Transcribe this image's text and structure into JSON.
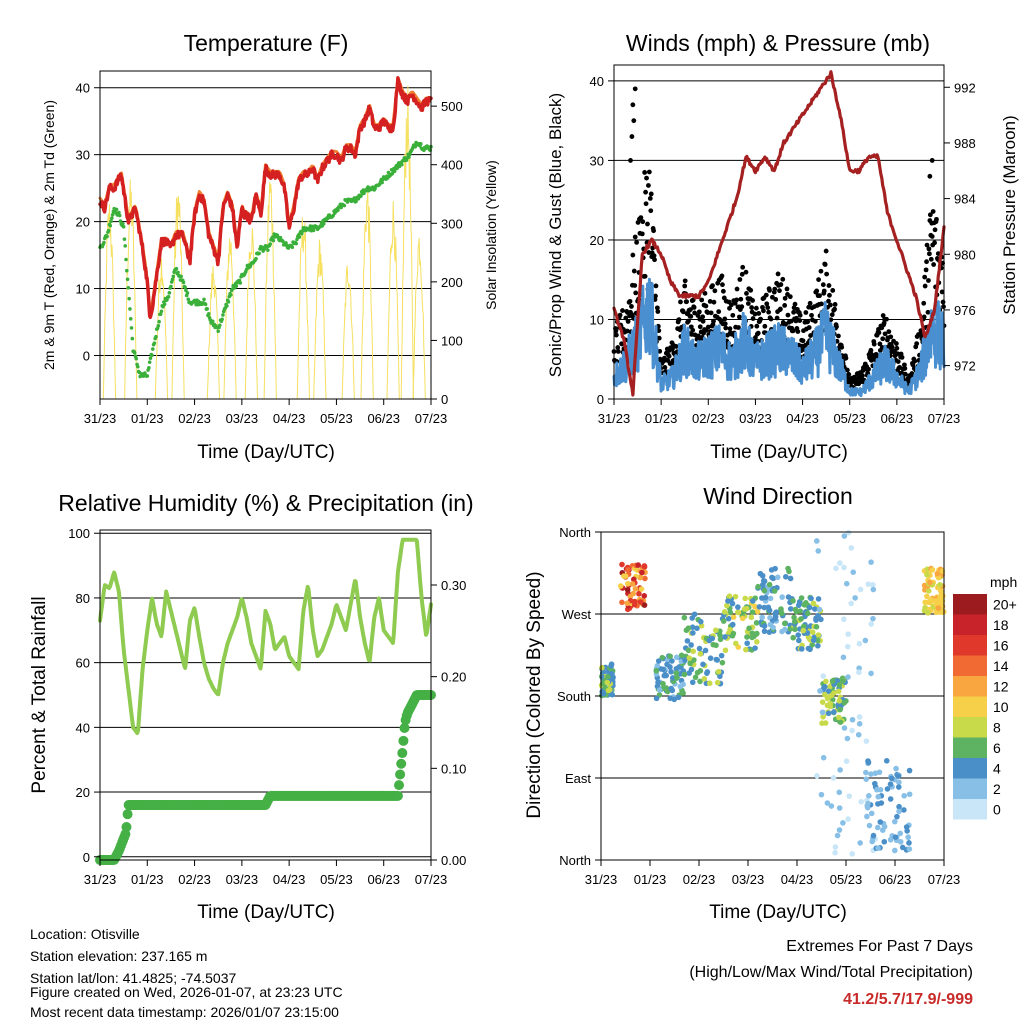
{
  "chart_data": [
    {
      "type": "line",
      "title": "Temperature (F)",
      "xlabel": "Time (Day/UTC)",
      "ylabel": "2m & 9m T (Red, Orange) & 2m Td (Green)",
      "y2label": "Solar Insolation (Yellow)",
      "xticks": [
        "31/23",
        "01/23",
        "02/23",
        "03/23",
        "04/23",
        "05/23",
        "06/23",
        "07/23"
      ],
      "xlim": [
        0,
        7
      ],
      "ylim": [
        -6.5,
        42.5
      ],
      "yticks": [
        0,
        10,
        20,
        30,
        40
      ],
      "y2lim": [
        0,
        560
      ],
      "y2ticks": [
        0,
        100,
        200,
        300,
        400,
        500
      ],
      "series": [
        {
          "name": "2m T",
          "color": "#d42020",
          "x": [
            0,
            0.1,
            0.2,
            0.3,
            0.45,
            0.6,
            0.75,
            0.9,
            1.0,
            1.05,
            1.1,
            1.2,
            1.3,
            1.4,
            1.5,
            1.6,
            1.75,
            1.9,
            2.0,
            2.1,
            2.2,
            2.3,
            2.4,
            2.5,
            2.6,
            2.7,
            2.8,
            2.9,
            3.0,
            3.05,
            3.1,
            3.2,
            3.3,
            3.4,
            3.5,
            3.6,
            3.7,
            3.8,
            3.9,
            4.0,
            4.1,
            4.2,
            4.3,
            4.4,
            4.5,
            4.6,
            4.7,
            4.8,
            4.9,
            5.0,
            5.1,
            5.2,
            5.3,
            5.4,
            5.5,
            5.6,
            5.7,
            5.8,
            5.9,
            6.0,
            6.1,
            6.2,
            6.3,
            6.4,
            6.5,
            6.6,
            6.7,
            6.8,
            6.9,
            7.0
          ],
          "y": [
            23,
            22,
            25,
            25,
            27,
            20,
            22,
            16,
            11,
            6,
            7,
            12,
            17,
            17,
            16,
            18,
            18,
            14,
            21,
            24,
            23,
            18,
            16,
            14,
            22,
            24,
            22,
            16,
            22,
            21,
            21,
            20,
            24,
            21,
            28,
            27,
            27,
            27,
            25,
            19,
            22,
            26,
            27,
            27,
            28,
            26,
            28,
            29,
            30,
            30,
            29,
            31,
            31,
            30,
            34,
            35,
            37,
            34,
            34,
            35,
            34,
            34,
            41,
            39,
            38,
            39,
            38,
            37,
            38,
            38
          ]
        },
        {
          "name": "2m Td",
          "color": "#3ab03a",
          "x": [
            0,
            0.15,
            0.3,
            0.4,
            0.5,
            0.6,
            0.7,
            0.85,
            1.0,
            1.15,
            1.3,
            1.45,
            1.6,
            1.75,
            1.9,
            2.05,
            2.2,
            2.35,
            2.5,
            2.65,
            2.8,
            2.95,
            3.1,
            3.25,
            3.4,
            3.55,
            3.7,
            3.85,
            4.0,
            4.15,
            4.3,
            4.45,
            4.6,
            4.75,
            4.9,
            5.05,
            5.2,
            5.35,
            5.5,
            5.65,
            5.8,
            5.95,
            6.1,
            6.25,
            6.4,
            6.55,
            6.7,
            6.85,
            7.0
          ],
          "y": [
            16,
            18,
            22,
            21,
            19,
            10,
            1,
            -3,
            -3,
            2,
            7,
            9,
            13,
            11,
            8,
            8,
            8,
            5,
            4,
            7,
            10,
            11,
            13,
            14,
            16,
            16,
            18,
            17,
            16,
            17,
            19,
            19,
            19,
            20,
            21,
            22,
            23,
            23,
            24,
            25,
            25,
            26,
            27,
            28,
            29,
            30,
            32,
            31,
            31
          ]
        },
        {
          "name": "9m T",
          "color": "#f08030",
          "x": [
            0,
            0.5,
            1.0,
            1.5,
            2.0,
            2.5,
            3.0,
            3.5,
            4.0,
            4.5,
            5.0,
            5.5,
            6.0,
            6.5,
            7.0
          ],
          "y": [
            23,
            25,
            12,
            17,
            21,
            16,
            22,
            27,
            19,
            27,
            30,
            33,
            35,
            38,
            38
          ]
        },
        {
          "name": "Solar Insolation",
          "color": "#f5e060",
          "axis": "y2",
          "peaks": [
            {
              "x": 0.2,
              "v": 350
            },
            {
              "x": 0.65,
              "v": 380
            },
            {
              "x": 1.3,
              "v": 260
            },
            {
              "x": 1.65,
              "v": 380
            },
            {
              "x": 2.4,
              "v": 240
            },
            {
              "x": 2.75,
              "v": 300
            },
            {
              "x": 3.2,
              "v": 320
            },
            {
              "x": 3.6,
              "v": 400
            },
            {
              "x": 4.3,
              "v": 330
            },
            {
              "x": 4.65,
              "v": 280
            },
            {
              "x": 5.25,
              "v": 250
            },
            {
              "x": 5.65,
              "v": 380
            },
            {
              "x": 6.2,
              "v": 350
            },
            {
              "x": 6.5,
              "v": 540
            },
            {
              "x": 6.75,
              "v": 300
            }
          ]
        }
      ]
    },
    {
      "type": "scatter",
      "title": "Winds (mph) & Pressure (mb)",
      "xlabel": "Time (Day/UTC)",
      "ylabel": "Sonic/Prop Wind & Gust (Blue, Black)",
      "y2label": "Station Pressure (Maroon)",
      "xticks": [
        "31/23",
        "01/23",
        "02/23",
        "03/23",
        "04/23",
        "05/23",
        "06/23",
        "07/23"
      ],
      "xlim": [
        0,
        7
      ],
      "ylim": [
        0,
        42
      ],
      "yticks": [
        0,
        10,
        20,
        30,
        40
      ],
      "y2lim": [
        969.6,
        993.6
      ],
      "y2ticks": [
        972,
        976,
        980,
        984,
        988,
        992
      ],
      "series": [
        {
          "name": "Wind",
          "color": "#4a90d0",
          "x": [
            0,
            0.25,
            0.5,
            0.75,
            1.0,
            1.25,
            1.5,
            1.75,
            2.0,
            2.25,
            2.5,
            2.75,
            3.0,
            3.25,
            3.5,
            3.75,
            4.0,
            4.25,
            4.5,
            4.75,
            5.0,
            5.25,
            5.5,
            5.75,
            6.0,
            6.25,
            6.5,
            6.75,
            7.0
          ],
          "y": [
            3,
            5,
            8,
            13,
            2,
            3,
            7,
            5,
            6,
            7,
            5,
            8,
            5,
            6,
            7,
            6,
            4,
            6,
            9,
            5,
            1,
            1,
            3,
            5,
            3,
            1,
            4,
            10,
            8
          ]
        },
        {
          "name": "Gust",
          "color": "#000000",
          "x": [
            0,
            0.25,
            0.5,
            0.75,
            1.0,
            1.25,
            1.5,
            1.75,
            2.0,
            2.25,
            2.5,
            2.75,
            3.0,
            3.25,
            3.5,
            3.75,
            4.0,
            4.25,
            4.5,
            4.75,
            5.0,
            5.25,
            5.5,
            5.75,
            6.0,
            6.25,
            6.5,
            6.75,
            7.0
          ],
          "y": [
            7,
            10,
            18,
            26,
            4,
            6,
            12,
            10,
            11,
            13,
            10,
            14,
            9,
            11,
            13,
            11,
            8,
            11,
            15,
            9,
            2,
            3,
            6,
            9,
            6,
            2,
            8,
            22,
            15
          ]
        },
        {
          "name": "Station Pressure",
          "color": "#a52020",
          "axis": "y2",
          "x": [
            0,
            0.2,
            0.4,
            0.6,
            0.8,
            1.0,
            1.2,
            1.4,
            1.6,
            1.8,
            2.0,
            2.2,
            2.4,
            2.6,
            2.8,
            3.0,
            3.2,
            3.4,
            3.6,
            3.8,
            4.0,
            4.2,
            4.4,
            4.6,
            4.8,
            5.0,
            5.2,
            5.4,
            5.6,
            5.8,
            6.0,
            6.2,
            6.4,
            6.6,
            6.8,
            7.0
          ],
          "y": [
            976,
            974,
            970,
            980,
            981,
            980,
            978,
            977,
            977,
            977,
            978,
            980,
            982,
            984,
            987,
            986,
            987,
            986,
            988,
            989,
            990,
            991,
            992,
            993,
            990,
            986,
            986,
            987,
            987,
            983,
            981,
            979,
            977,
            974,
            976,
            982
          ]
        }
      ]
    },
    {
      "type": "line",
      "title": "Relative Humidity (%) & Precipitation (in)",
      "xlabel": "Time (Day/UTC)",
      "ylabel": "Percent & Total Rainfall",
      "xticks": [
        "31/23",
        "01/23",
        "02/23",
        "03/23",
        "04/23",
        "05/23",
        "06/23",
        "07/23"
      ],
      "xlim": [
        0,
        7
      ],
      "ylim": [
        -1,
        101
      ],
      "yticks": [
        0,
        20,
        40,
        60,
        80,
        100
      ],
      "y2lim": [
        0,
        0.36
      ],
      "y2ticks": [
        "0.00",
        "0.10",
        "0.20",
        "0.30"
      ],
      "series": [
        {
          "name": "Relative Humidity",
          "color": "#8ecb50",
          "x": [
            0,
            0.1,
            0.2,
            0.3,
            0.4,
            0.5,
            0.6,
            0.7,
            0.8,
            0.9,
            1.0,
            1.1,
            1.2,
            1.3,
            1.4,
            1.5,
            1.6,
            1.7,
            1.8,
            1.9,
            2.0,
            2.1,
            2.2,
            2.3,
            2.4,
            2.5,
            2.6,
            2.7,
            2.8,
            2.9,
            3.0,
            3.1,
            3.2,
            3.3,
            3.4,
            3.5,
            3.6,
            3.7,
            3.8,
            3.9,
            4.0,
            4.1,
            4.2,
            4.3,
            4.4,
            4.5,
            4.6,
            4.7,
            4.8,
            4.9,
            5.0,
            5.1,
            5.2,
            5.3,
            5.4,
            5.5,
            5.6,
            5.7,
            5.8,
            5.9,
            6.0,
            6.1,
            6.2,
            6.3,
            6.4,
            6.5,
            6.6,
            6.7,
            6.8,
            6.9,
            7.0
          ],
          "y": [
            73,
            84,
            83,
            88,
            82,
            64,
            52,
            40,
            38,
            58,
            70,
            80,
            72,
            68,
            82,
            76,
            70,
            64,
            58,
            73,
            77,
            68,
            60,
            55,
            52,
            50,
            60,
            66,
            70,
            74,
            80,
            74,
            66,
            62,
            58,
            76,
            72,
            64,
            66,
            68,
            62,
            60,
            58,
            76,
            84,
            70,
            62,
            64,
            68,
            72,
            78,
            74,
            70,
            78,
            86,
            74,
            66,
            60,
            74,
            80,
            70,
            68,
            66,
            88,
            98,
            98,
            98,
            98,
            80,
            68,
            78
          ]
        },
        {
          "name": "Total Precipitation",
          "color": "#45b045",
          "axis": "y2",
          "x": [
            0,
            0.3,
            0.4,
            0.55,
            0.6,
            0.7,
            1.0,
            2.0,
            3.0,
            3.5,
            3.6,
            4.0,
            5.0,
            6.0,
            6.3,
            6.4,
            6.45,
            6.5,
            6.6,
            6.7,
            6.8,
            7.0
          ],
          "y": [
            0,
            0,
            0.01,
            0.03,
            0.06,
            0.06,
            0.06,
            0.06,
            0.06,
            0.06,
            0.07,
            0.07,
            0.07,
            0.07,
            0.07,
            0.12,
            0.15,
            0.16,
            0.17,
            0.18,
            0.18,
            0.18
          ]
        }
      ]
    },
    {
      "type": "scatter",
      "title": "Wind Direction",
      "xlabel": "Time (Day/UTC)",
      "ylabel": "Direction (Colored By Speed)",
      "xticks": [
        "31/23",
        "01/23",
        "02/23",
        "03/23",
        "04/23",
        "05/23",
        "06/23",
        "07/23"
      ],
      "xlim": [
        0,
        7
      ],
      "ylim": [
        0,
        360
      ],
      "ytick_values": [
        0,
        90,
        180,
        270,
        360
      ],
      "ytick_labels": [
        "North",
        "East",
        "South",
        "West",
        "North"
      ],
      "legend_title": "mph",
      "legend_labels": [
        "20+",
        "18",
        "16",
        "14",
        "12",
        "10",
        "8",
        "6",
        "4",
        "2",
        "0"
      ],
      "colorscale": [
        "#9b1b1e",
        "#c8232a",
        "#e0392b",
        "#f26a33",
        "#f9a640",
        "#f6d048",
        "#c8d94a",
        "#5db362",
        "#4a8fc8",
        "#88bfe6",
        "#c8e6f7"
      ],
      "clusters": [
        {
          "x": [
            0.0,
            0.25
          ],
          "dir": [
            180,
            215
          ],
          "speed": [
            3,
            8
          ]
        },
        {
          "x": [
            0.4,
            0.9
          ],
          "dir": [
            275,
            325
          ],
          "speed": [
            9,
            20
          ]
        },
        {
          "x": [
            1.1,
            1.7
          ],
          "dir": [
            175,
            225
          ],
          "speed": [
            2,
            6
          ]
        },
        {
          "x": [
            1.7,
            2.5
          ],
          "dir": [
            190,
            270
          ],
          "speed": [
            3,
            9
          ]
        },
        {
          "x": [
            2.5,
            3.2
          ],
          "dir": [
            230,
            290
          ],
          "speed": [
            4,
            10
          ]
        },
        {
          "x": [
            3.2,
            3.9
          ],
          "dir": [
            250,
            320
          ],
          "speed": [
            2,
            6
          ]
        },
        {
          "x": [
            3.9,
            4.5
          ],
          "dir": [
            230,
            290
          ],
          "speed": [
            3,
            8
          ]
        },
        {
          "x": [
            4.5,
            5.0
          ],
          "dir": [
            150,
            200
          ],
          "speed": [
            4,
            9
          ]
        },
        {
          "x": [
            4.4,
            5.6
          ],
          "dir": [
            0,
            360
          ],
          "speed": [
            0,
            2
          ]
        },
        {
          "x": [
            5.4,
            6.3
          ],
          "dir": [
            10,
            110
          ],
          "speed": [
            1,
            5
          ]
        },
        {
          "x": [
            6.6,
            7.0
          ],
          "dir": [
            270,
            320
          ],
          "speed": [
            8,
            12
          ]
        }
      ]
    }
  ],
  "footer": {
    "location": "Location: Otisville",
    "elevation": "Station elevation: 237.165 m",
    "latlon": "Station lat/lon: 41.4825; -74.5037",
    "created": "Figure created on Wed, 2026-01-07, at 23:23 UTC",
    "recent": "Most recent data timestamp: 2026/01/07 23:15:00",
    "extremes_title": "Extremes For Past 7 Days",
    "extremes_subtitle": "(High/Low/Max Wind/Total Precipitation)",
    "extremes_values": "41.2/5.7/17.9/-999"
  }
}
